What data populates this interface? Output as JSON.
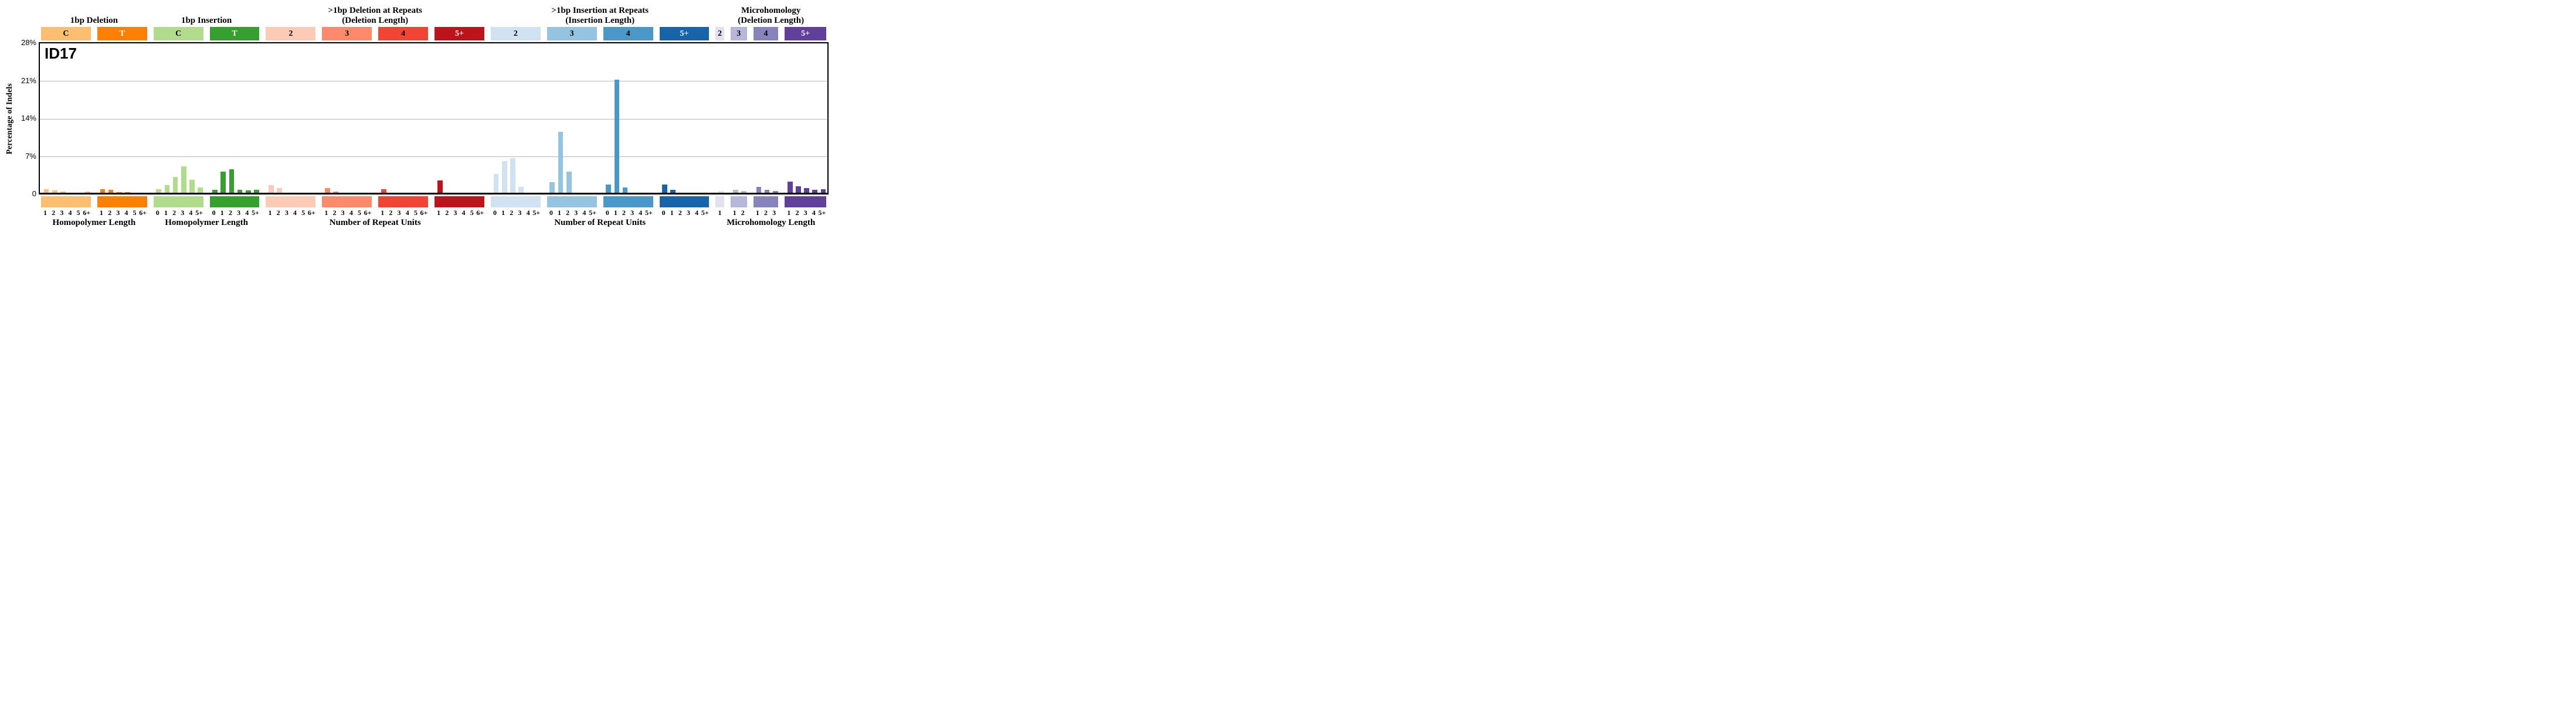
{
  "figure_id": "ID17",
  "y_axis": {
    "title": "Percentage of Indels",
    "ticks": [
      {
        "label": "28%",
        "value": 28
      },
      {
        "label": "21%",
        "value": 21
      },
      {
        "label": "14%",
        "value": 14
      },
      {
        "label": "7%",
        "value": 7
      },
      {
        "label": "0",
        "value": 0
      }
    ],
    "max": 28
  },
  "chart_data": {
    "type": "bar",
    "title": "ID17",
    "ylabel": "Percentage of Indels",
    "ylim": [
      0,
      28
    ],
    "grid": "horizontal",
    "unit": "percent of indels",
    "groups": [
      {
        "title": "1bp Deletion",
        "subtitle": "",
        "bottom_label": "Homopolymer Length",
        "sections": [
          0,
          1
        ]
      },
      {
        "title": "1bp Insertion",
        "subtitle": "",
        "bottom_label": "Homopolymer Length",
        "sections": [
          2,
          3
        ]
      },
      {
        "title": ">1bp Deletion at Repeats",
        "subtitle": "(Deletion Length)",
        "bottom_label": "Number of Repeat Units",
        "sections": [
          4,
          5,
          6,
          7
        ]
      },
      {
        "title": ">1bp Insertion at Repeats",
        "subtitle": "(Insertion Length)",
        "bottom_label": "Number of Repeat Units",
        "sections": [
          8,
          9,
          10,
          11
        ]
      },
      {
        "title": "Microhomology",
        "subtitle": "(Deletion Length)",
        "bottom_label": "Microhomology Length",
        "sections": [
          12,
          13,
          14,
          15
        ]
      }
    ],
    "sections": [
      {
        "key": "del-C",
        "header": "C",
        "color": "#FDBE6F",
        "header_text_color": "#000000",
        "categories": [
          "1",
          "2",
          "3",
          "4",
          "5",
          "6+"
        ],
        "values": [
          0.65,
          0.4,
          0.17,
          0.0,
          0.0,
          0.17
        ]
      },
      {
        "key": "del-T",
        "header": "T",
        "color": "#FF8001",
        "header_text_color": "#ffffff",
        "categories": [
          "1",
          "2",
          "3",
          "4",
          "5",
          "6+"
        ],
        "values": [
          0.7,
          0.55,
          0.12,
          0.09,
          0.0,
          0.0
        ]
      },
      {
        "key": "ins-C",
        "header": "C",
        "color": "#B0DC8B",
        "header_text_color": "#000000",
        "categories": [
          "0",
          "1",
          "2",
          "3",
          "4",
          "5+"
        ],
        "values": [
          0.7,
          1.44,
          2.94,
          4.95,
          2.45,
          0.93
        ]
      },
      {
        "key": "ins-T",
        "header": "T",
        "color": "#36A02E",
        "header_text_color": "#ffffff",
        "categories": [
          "0",
          "1",
          "2",
          "3",
          "4",
          "5+"
        ],
        "values": [
          0.5,
          3.89,
          4.4,
          0.5,
          0.49,
          0.5
        ]
      },
      {
        "key": "del-rep-2",
        "header": "2",
        "color": "#FDCAB5",
        "header_text_color": "#000000",
        "categories": [
          "1",
          "2",
          "3",
          "4",
          "5",
          "6+"
        ],
        "values": [
          1.44,
          0.84,
          0,
          0,
          0,
          0
        ]
      },
      {
        "key": "del-rep-3",
        "header": "3",
        "color": "#FC8A6A",
        "header_text_color": "#000000",
        "categories": [
          "1",
          "2",
          "3",
          "4",
          "5",
          "6+"
        ],
        "values": [
          0.87,
          0.25,
          0,
          0,
          0,
          0
        ]
      },
      {
        "key": "del-rep-4",
        "header": "4",
        "color": "#F14432",
        "header_text_color": "#000000",
        "categories": [
          "1",
          "2",
          "3",
          "4",
          "5",
          "6+"
        ],
        "values": [
          0.63,
          0,
          0,
          0,
          0,
          0
        ]
      },
      {
        "key": "del-rep-5+",
        "header": "5+",
        "color": "#BC141A",
        "header_text_color": "#ffffff",
        "categories": [
          "1",
          "2",
          "3",
          "4",
          "5",
          "6+"
        ],
        "values": [
          2.33,
          0,
          0,
          0,
          0,
          0
        ]
      },
      {
        "key": "ins-rep-2",
        "header": "2",
        "color": "#D0E1F2",
        "header_text_color": "#000000",
        "categories": [
          "0",
          "1",
          "2",
          "3",
          "4",
          "5+"
        ],
        "values": [
          3.45,
          5.9,
          6.4,
          1.05,
          0,
          0
        ]
      },
      {
        "key": "ins-rep-3",
        "header": "3",
        "color": "#94C4DF",
        "header_text_color": "#000000",
        "categories": [
          "0",
          "1",
          "2",
          "3",
          "4",
          "5+"
        ],
        "values": [
          2.0,
          11.3,
          3.9,
          0,
          0,
          0
        ]
      },
      {
        "key": "ins-rep-4",
        "header": "4",
        "color": "#4A98C9",
        "header_text_color": "#000000",
        "categories": [
          "0",
          "1",
          "2",
          "3",
          "4",
          "5+"
        ],
        "values": [
          1.5,
          21.0,
          1.0,
          0,
          0,
          0
        ]
      },
      {
        "key": "ins-rep-5+",
        "header": "5+",
        "color": "#1764AB",
        "header_text_color": "#ffffff",
        "categories": [
          "0",
          "1",
          "2",
          "3",
          "4",
          "5+"
        ],
        "values": [
          1.5,
          0.55,
          0,
          0,
          0,
          0
        ]
      },
      {
        "key": "mh-2",
        "header": "2",
        "color": "#E1E1EF",
        "header_text_color": "#000000",
        "categories": [
          "1"
        ],
        "values": [
          0.35
        ]
      },
      {
        "key": "mh-3",
        "header": "3",
        "color": "#B6B6D8",
        "header_text_color": "#000000",
        "categories": [
          "1",
          "2"
        ],
        "values": [
          0.5,
          0.35
        ]
      },
      {
        "key": "mh-4",
        "header": "4",
        "color": "#8683BD",
        "header_text_color": "#000000",
        "categories": [
          "1",
          "2",
          "3"
        ],
        "values": [
          1.1,
          0.5,
          0.35
        ]
      },
      {
        "key": "mh-5+",
        "header": "5+",
        "color": "#61409B",
        "header_text_color": "#ffffff",
        "categories": [
          "1",
          "2",
          "3",
          "4",
          "5+"
        ],
        "values": [
          2.05,
          1.2,
          0.85,
          0.5,
          0.6
        ]
      }
    ]
  }
}
